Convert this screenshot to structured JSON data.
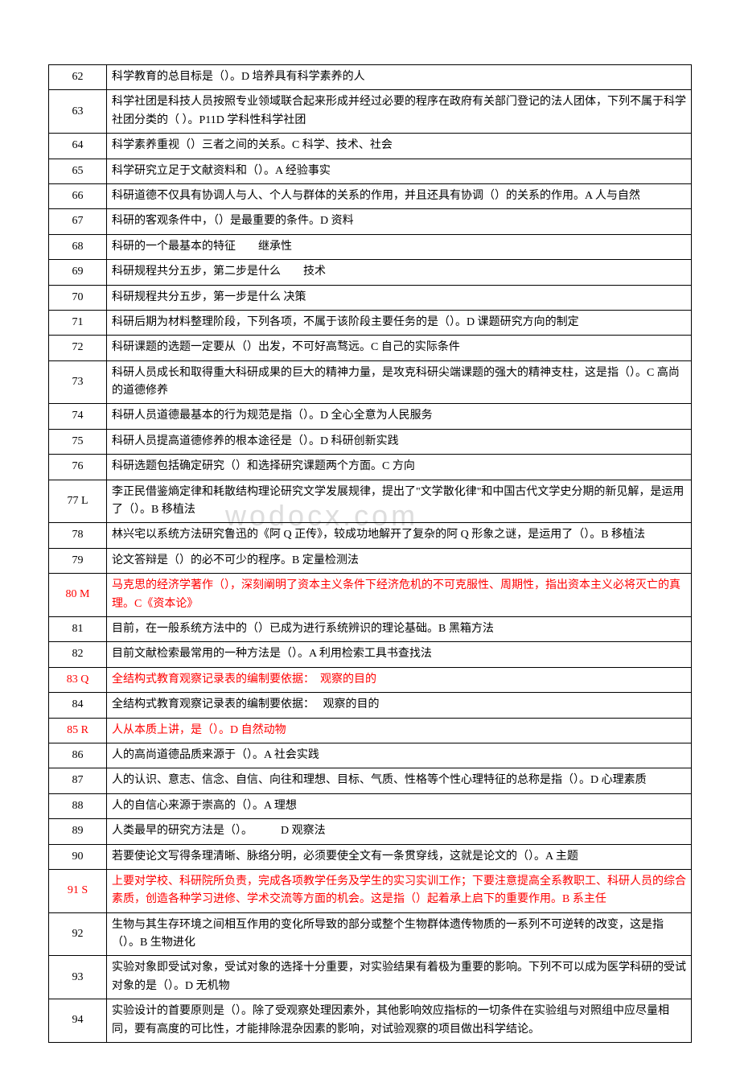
{
  "watermark": "wodocx.com",
  "rows": [
    {
      "num": "62",
      "content": "科学教育的总目标是（）。D 培养具有科学素养的人",
      "red": false
    },
    {
      "num": "63",
      "content": "科学社团是科技人员按照专业领域联合起来形成并经过必要的程序在政府有关部门登记的法人团体，下列不属于科学社团分类的（ ）。P11D 学科性科学社团",
      "red": false
    },
    {
      "num": "64",
      "content": "科学素养重视（）三者之间的关系。C 科学、技术、社会",
      "red": false
    },
    {
      "num": "65",
      "content": "科学研究立足于文献资料和（）。A 经验事实",
      "red": false
    },
    {
      "num": "66",
      "content": "科研道德不仅具有协调人与人、个人与群体的关系的作用，并且还具有协调（）的关系的作用。A 人与自然",
      "red": false
    },
    {
      "num": "67",
      "content": "科研的客观条件中，（）是最重要的条件。D 资料",
      "red": false
    },
    {
      "num": "68",
      "content": "科研的一个最基本的特征　　继承性",
      "red": false
    },
    {
      "num": "69",
      "content": "科研规程共分五步，第二步是什么　　技术",
      "red": false
    },
    {
      "num": "70",
      "content": "科研规程共分五步，第一步是什么 决策",
      "red": false
    },
    {
      "num": "71",
      "content": "科研后期为材料整理阶段，下列各项，不属于该阶段主要任务的是（）。D 课题研究方向的制定",
      "red": false
    },
    {
      "num": "72",
      "content": "科研课题的选题一定要从（）出发，不可好高骛远。C 自己的实际条件",
      "red": false
    },
    {
      "num": "73",
      "content": "科研人员成长和取得重大科研成果的巨大的精神力量，是攻克科研尖端课题的强大的精神支柱，这是指（）。C 高尚的道德修养",
      "red": false
    },
    {
      "num": "74",
      "content": "科研人员道德最基本的行为规范是指（）。D 全心全意为人民服务",
      "red": false
    },
    {
      "num": "75",
      "content": "科研人员提高道德修养的根本途径是（）。D 科研创新实践",
      "red": false
    },
    {
      "num": "76",
      "content": "科研选题包括确定研究（）和选择研究课题两个方面。C 方向",
      "red": false
    },
    {
      "num": "77 L",
      "content": "李正民借鉴熵定律和耗散结构理论研究文学发展规律，提出了\"文学散化律\"和中国古代文学史分期的新见解，是运用了（）。B 移植法",
      "red": false
    },
    {
      "num": "78",
      "content": "林兴宅以系统方法研究鲁迅的《阿 Q 正传》，较成功地解开了复杂的阿 Q 形象之谜，是运用了（）。B 移植法",
      "red": false
    },
    {
      "num": "79",
      "content": "论文答辩是（）的必不可少的程序。B 定量检测法",
      "red": false
    },
    {
      "num": "80 M",
      "content": "马克思的经济学著作（），深刻阐明了资本主义条件下经济危机的不可克服性、周期性，指出资本主义必将灭亡的真理。C《资本论》",
      "red": true
    },
    {
      "num": "81",
      "content": "目前，在一般系统方法中的（）已成为进行系统辨识的理论基础。B 黑箱方法",
      "red": false
    },
    {
      "num": "82",
      "content": "目前文献检索最常用的一种方法是（）。A 利用检索工具书查找法",
      "red": false
    },
    {
      "num": "83 Q",
      "content": "全结构式教育观察记录表的编制要依据：　观察的目的",
      "red": true
    },
    {
      "num": "84",
      "content": "全结构式教育观察记录表的编制要依据：　 观察的目的",
      "red": false
    },
    {
      "num": "85 R",
      "content": "人从本质上讲，是（）。D 自然动物",
      "red": true
    },
    {
      "num": "86",
      "content": "人的高尚道德品质来源于（）。A 社会实践",
      "red": false
    },
    {
      "num": "87",
      "content": "人的认识、意志、信念、自信、向往和理想、目标、气质、性格等个性心理特征的总称是指（）。D 心理素质",
      "red": false
    },
    {
      "num": "88",
      "content": "人的自信心来源于崇高的（）。A 理想",
      "red": false
    },
    {
      "num": "89",
      "content": "人类最早的研究方法是（）。　　　D 观察法",
      "red": false
    },
    {
      "num": "90",
      "content": "若要使论文写得条理清晰、脉络分明，必须要使全文有一条贯穿线，这就是论文的（）。A 主题",
      "red": false
    },
    {
      "num": "91 S",
      "content": "上要对学校、科研院所负责，完成各项教学任务及学生的实习实训工作；下要注意提高全系教职工、科研人员的综合素质，创造各种学习进修、学术交流等方面的机会。这是指（）起着承上启下的重要作用。B 系主任",
      "red": true
    },
    {
      "num": "92",
      "content": "生物与其生存环境之间相互作用的变化所导致的部分或整个生物群体遗传物质的一系列不可逆转的改变，这是指（）。B 生物进化",
      "red": false
    },
    {
      "num": "93",
      "content": "实验对象即受试对象，受试对象的选择十分重要，对实验结果有着极为重要的影响。下列不可以成为医学科研的受试对象的是（）。D 无机物",
      "red": false
    },
    {
      "num": "94",
      "content": "实验设计的首要原则是（）。除了受观察处理因素外，其他影响效应指标的一切条件在实验组与对照组中应尽量相同，要有高度的可比性，才能排除混杂因素的影响，对试验观察的项目做出科学结论。",
      "red": false
    }
  ]
}
